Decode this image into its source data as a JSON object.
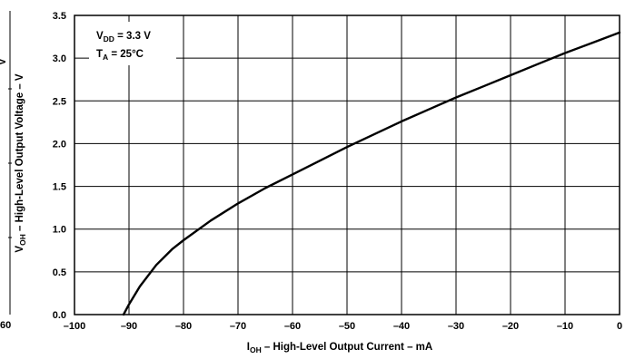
{
  "chart_data": {
    "type": "line",
    "xlabel": {
      "main": "I",
      "sub": "OH",
      "rest": " – High-Level Output Current – mA"
    },
    "ylabel": {
      "main": "V",
      "sub": "OH",
      "rest": " – High-Level Output Voltage – V"
    },
    "xlim": [
      -100,
      0
    ],
    "ylim": [
      0,
      3.5
    ],
    "x_ticks": [
      -100,
      -90,
      -80,
      -70,
      -60,
      -50,
      -40,
      -30,
      -20,
      -10,
      0
    ],
    "x_tick_labels": [
      "–100",
      "–90",
      "–80",
      "–70",
      "–60",
      "–50",
      "–40",
      "–30",
      "–20",
      "–10",
      "0"
    ],
    "y_ticks": [
      0,
      0.5,
      1,
      1.5,
      2,
      2.5,
      3,
      3.5
    ],
    "y_tick_labels": [
      "0.0",
      "0.5",
      "1.0",
      "1.5",
      "2.0",
      "2.5",
      "3.0",
      "3.5"
    ],
    "grid": true,
    "annotations": [
      {
        "main": "V",
        "sub": "DD",
        "rest": " = 3.3 V"
      },
      {
        "main": "T",
        "sub": "A",
        "rest": " = 25°C"
      }
    ],
    "left_edge_fragments": {
      "x_tick": "60",
      "y_label": "V"
    },
    "series": [
      {
        "x": [
          -91,
          -90,
          -88,
          -85,
          -82,
          -80,
          -75,
          -70,
          -65,
          -60,
          -55,
          -50,
          -45,
          -40,
          -35,
          -30,
          -25,
          -20,
          -15,
          -10,
          -5,
          0
        ],
        "y": [
          0.0,
          0.12,
          0.33,
          0.58,
          0.77,
          0.87,
          1.1,
          1.3,
          1.48,
          1.64,
          1.8,
          1.96,
          2.11,
          2.26,
          2.4,
          2.54,
          2.67,
          2.8,
          2.93,
          3.06,
          3.18,
          3.3
        ]
      }
    ]
  }
}
